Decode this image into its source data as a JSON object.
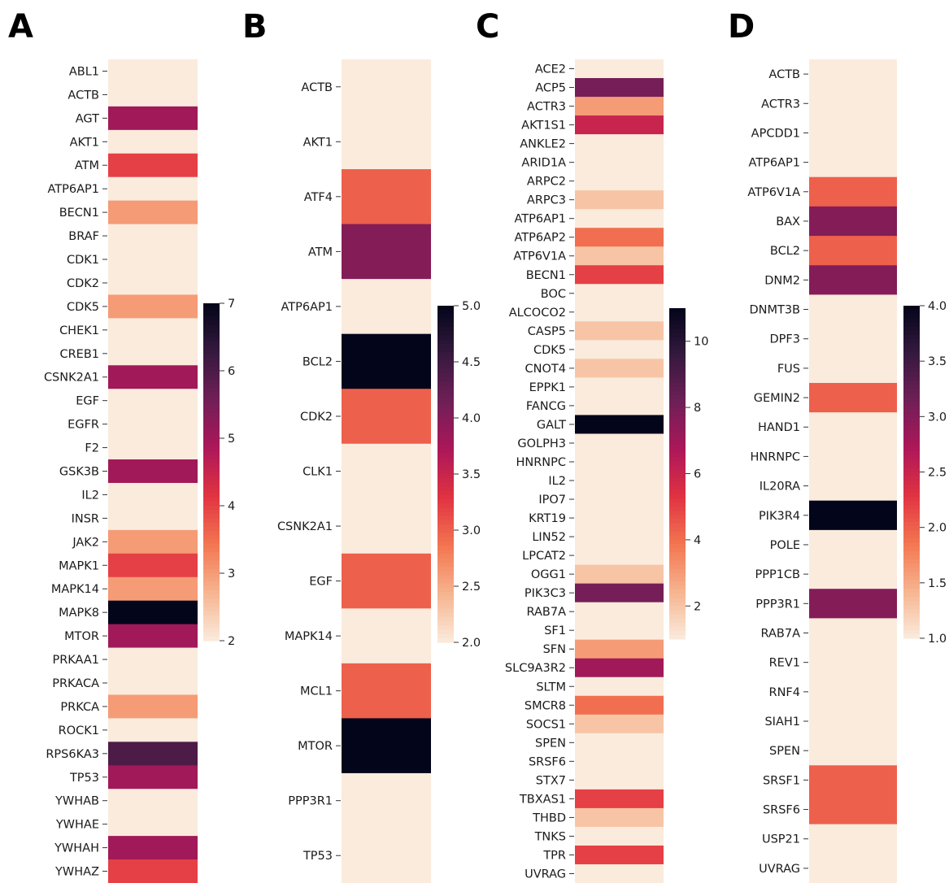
{
  "colors": {
    "low": "#faebdd",
    "scale_stops": [
      "#faebdd",
      "#f6b48f",
      "#f37651",
      "#e13342",
      "#ad1759",
      "#701f57",
      "#35193e",
      "#03051a"
    ]
  },
  "chart_data": [
    {
      "type": "heatmap",
      "panel": "A",
      "rows": [
        "ABL1",
        "ACTB",
        "AGT",
        "AKT1",
        "ATM",
        "ATP6AP1",
        "BECN1",
        "BRAF",
        "CDK1",
        "CDK2",
        "CDK5",
        "CHEK1",
        "CREB1",
        "CSNK2A1",
        "EGF",
        "EGFR",
        "F2",
        "GSK3B",
        "IL2",
        "INSR",
        "JAK2",
        "MAPK1",
        "MAPK14",
        "MAPK8",
        "MTOR",
        "PRKAA1",
        "PRKACA",
        "PRKCA",
        "ROCK1",
        "RPS6KA3",
        "TP53",
        "YWHAB",
        "YWHAE",
        "YWHAH",
        "YWHAZ"
      ],
      "values": [
        2,
        2,
        5,
        2,
        4,
        2,
        3,
        2,
        2,
        2,
        3,
        2,
        2,
        5,
        2,
        2,
        2,
        5,
        2,
        2,
        3,
        4,
        3,
        7,
        5,
        2,
        2,
        3,
        2,
        6,
        5,
        2,
        2,
        5,
        4
      ],
      "colorbar": {
        "vmin": 2,
        "vmax": 7,
        "ticks": [
          "2",
          "3",
          "4",
          "5",
          "6",
          "7"
        ]
      }
    },
    {
      "type": "heatmap",
      "panel": "B",
      "rows": [
        "ACTB",
        "AKT1",
        "ATF4",
        "ATM",
        "ATP6AP1",
        "BCL2",
        "CDK2",
        "CLK1",
        "CSNK2A1",
        "EGF",
        "MAPK14",
        "MCL1",
        "MTOR",
        "PPP3R1",
        "TP53"
      ],
      "values": [
        2,
        2,
        3,
        4,
        2,
        5,
        3,
        2,
        2,
        3,
        2,
        3,
        5,
        2,
        2
      ],
      "colorbar": {
        "vmin": 2,
        "vmax": 5,
        "ticks": [
          "2.0",
          "2.5",
          "3.0",
          "3.5",
          "4.0",
          "4.5",
          "5.0"
        ]
      }
    },
    {
      "type": "heatmap",
      "panel": "C",
      "rows": [
        "ACE2",
        "ACP5",
        "ACTR3",
        "AKT1S1",
        "ANKLE2",
        "ARID1A",
        "ARPC2",
        "ARPC3",
        "ATP6AP1",
        "ATP6AP2",
        "ATP6V1A",
        "BECN1",
        "BOC",
        "ALCOCO2",
        "CASP5",
        "CDK5",
        "CNOT4",
        "EPPK1",
        "FANCG",
        "GALT",
        "GOLPH3",
        "HNRNPC",
        "IL2",
        "IPO7",
        "KRT19",
        "LIN52",
        "LPCAT2",
        "OGG1",
        "PIK3C3",
        "RAB7A",
        "SF1",
        "SFN",
        "SLC9A3R2",
        "SLTM",
        "SMCR8",
        "SOCS1",
        "SPEN",
        "SRSF6",
        "STX7",
        "TBXAS1",
        "THBD",
        "TNKS",
        "TPR",
        "UVRAG"
      ],
      "values": [
        1,
        8,
        3,
        6,
        1,
        1,
        1,
        2,
        1,
        4,
        2,
        5,
        1,
        1,
        2,
        1,
        2,
        1,
        1,
        11,
        1,
        1,
        1,
        1,
        1,
        1,
        1,
        2,
        8,
        1,
        1,
        3,
        7,
        1,
        4,
        2,
        1,
        1,
        1,
        5,
        2,
        1,
        5,
        1
      ],
      "colorbar": {
        "vmin": 1,
        "vmax": 11,
        "ticks": [
          "2",
          "4",
          "6",
          "8",
          "10"
        ]
      }
    },
    {
      "type": "heatmap",
      "panel": "D",
      "rows": [
        "ACTB",
        "ACTR3",
        "APCDD1",
        "ATP6AP1",
        "ATP6V1A",
        "BAX",
        "BCL2",
        "DNM2",
        "DNMT3B",
        "DPF3",
        "FUS",
        "GEMIN2",
        "HAND1",
        "HNRNPC",
        "IL20RA",
        "PIK3R4",
        "POLE",
        "PPP1CB",
        "PPP3R1",
        "RAB7A",
        "REV1",
        "RNF4",
        "SIAH1",
        "SPEN",
        "SRSF1",
        "SRSF6",
        "USP21",
        "UVRAG"
      ],
      "values": [
        1,
        1,
        1,
        1,
        2,
        3,
        2,
        3,
        1,
        1,
        1,
        2,
        1,
        1,
        1,
        4,
        1,
        1,
        3,
        1,
        1,
        1,
        1,
        1,
        2,
        2,
        1,
        1
      ],
      "colorbar": {
        "vmin": 1,
        "vmax": 4,
        "ticks": [
          "1.0",
          "1.5",
          "2.0",
          "2.5",
          "3.0",
          "3.5",
          "4.0"
        ]
      }
    }
  ]
}
